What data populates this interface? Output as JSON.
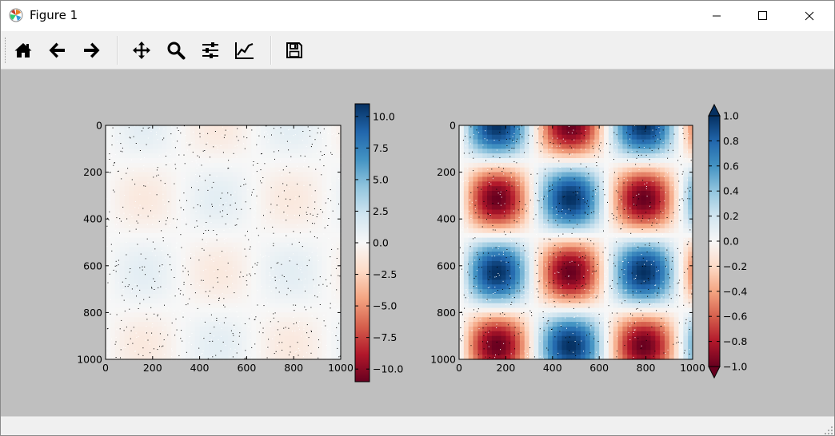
{
  "window": {
    "title": "Figure 1"
  },
  "toolbar": {
    "buttons": [
      {
        "name": "home-icon"
      },
      {
        "name": "back-arrow-icon"
      },
      {
        "name": "forward-arrow-icon"
      },
      {
        "name": "pan-icon"
      },
      {
        "name": "zoom-icon"
      },
      {
        "name": "subplots-icon"
      },
      {
        "name": "customize-icon"
      },
      {
        "name": "save-icon"
      }
    ]
  },
  "chart_data": [
    {
      "type": "heatmap",
      "xlim": [
        0,
        1000
      ],
      "ylim": [
        1000,
        0
      ],
      "xticks": [
        "0",
        "200",
        "400",
        "600",
        "800",
        "1000"
      ],
      "yticks": [
        "0",
        "200",
        "400",
        "600",
        "800",
        "1000"
      ],
      "colormap": "RdBu",
      "color_range": [
        -11,
        11
      ],
      "colorbar_ticks": [
        "10.0",
        "7.5",
        "5.0",
        "2.5",
        "0.0",
        "−2.5",
        "−5.0",
        "−7.5",
        "−10.0"
      ],
      "pattern": "sin(x)·cos(y) with scattered noise points"
    },
    {
      "type": "heatmap",
      "xlim": [
        0,
        1000
      ],
      "ylim": [
        1000,
        0
      ],
      "xticks": [
        "0",
        "200",
        "400",
        "600",
        "800",
        "1000"
      ],
      "yticks": [
        "0",
        "200",
        "400",
        "600",
        "800",
        "1000"
      ],
      "colormap": "RdBu",
      "color_range": [
        -1,
        1
      ],
      "colorbar_extend": "both",
      "colorbar_ticks": [
        "1.0",
        "0.8",
        "0.6",
        "0.4",
        "0.2",
        "0.0",
        "−0.2",
        "−0.4",
        "−0.6",
        "−0.8",
        "−1.0"
      ],
      "pattern": "sin(x)·cos(y) with scattered noise points"
    }
  ],
  "colors": {
    "figure_bg": "#bfbfbf",
    "red": "#67001f",
    "blue": "#053061",
    "white": "#f7f7f7"
  }
}
